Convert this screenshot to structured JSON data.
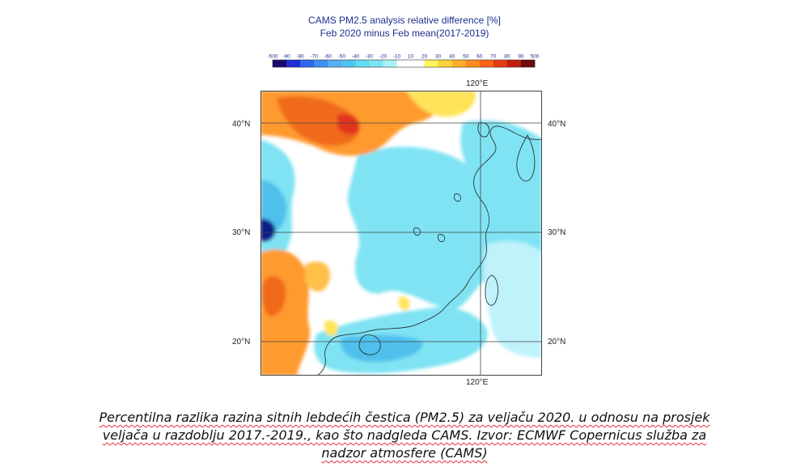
{
  "title": {
    "line1": "CAMS PM2.5 analysis relative difference [%]",
    "line2": "Feb 2020 minus Feb mean(2017-2019)"
  },
  "colorbar": {
    "ticks": [
      "-500",
      "-90",
      "-80",
      "-70",
      "-60",
      "-50",
      "-40",
      "-30",
      "-20",
      "-10",
      "10",
      "20",
      "30",
      "40",
      "50",
      "60",
      "70",
      "80",
      "90",
      "500"
    ],
    "colors": [
      "#1a0a6e",
      "#1f2fd6",
      "#2f67ee",
      "#3f8ff0",
      "#55b0f2",
      "#4fc4ee",
      "#5fdcf0",
      "#7ae6f2",
      "#a8f2f6",
      "#ffffff",
      "#ffffff",
      "#fff45a",
      "#ffd23a",
      "#ffae2a",
      "#ff8a1f",
      "#ff6218",
      "#e63a12",
      "#c01e10",
      "#6e0a08"
    ]
  },
  "map": {
    "lat_labels": [
      "40°N",
      "30°N",
      "20°N"
    ],
    "lon_label": "120°E",
    "colors": {
      "orange": "#ff9a2e",
      "dark_orange": "#f06a1c",
      "red": "#e0361a",
      "yellow": "#ffe35a",
      "light_orange": "#ffc04a",
      "cyan": "#7fe3f3",
      "light_cyan": "#bff2fb",
      "mid_blue": "#4fc0ec",
      "dark_blue": "#0b1c86",
      "land": "#ffffff"
    }
  },
  "caption": {
    "line1": "Percentilna razlika razina sitnih lebdećih čestica (PM2.5) za veljaču 2020. u odnosu na prosjek",
    "line2": "veljača u razdoblju 2017.-2019., kao što nadgleda CAMS. Izvor: ECMWF Copernicus služba za",
    "line3": "nadzor atmosfere (CAMS)"
  }
}
